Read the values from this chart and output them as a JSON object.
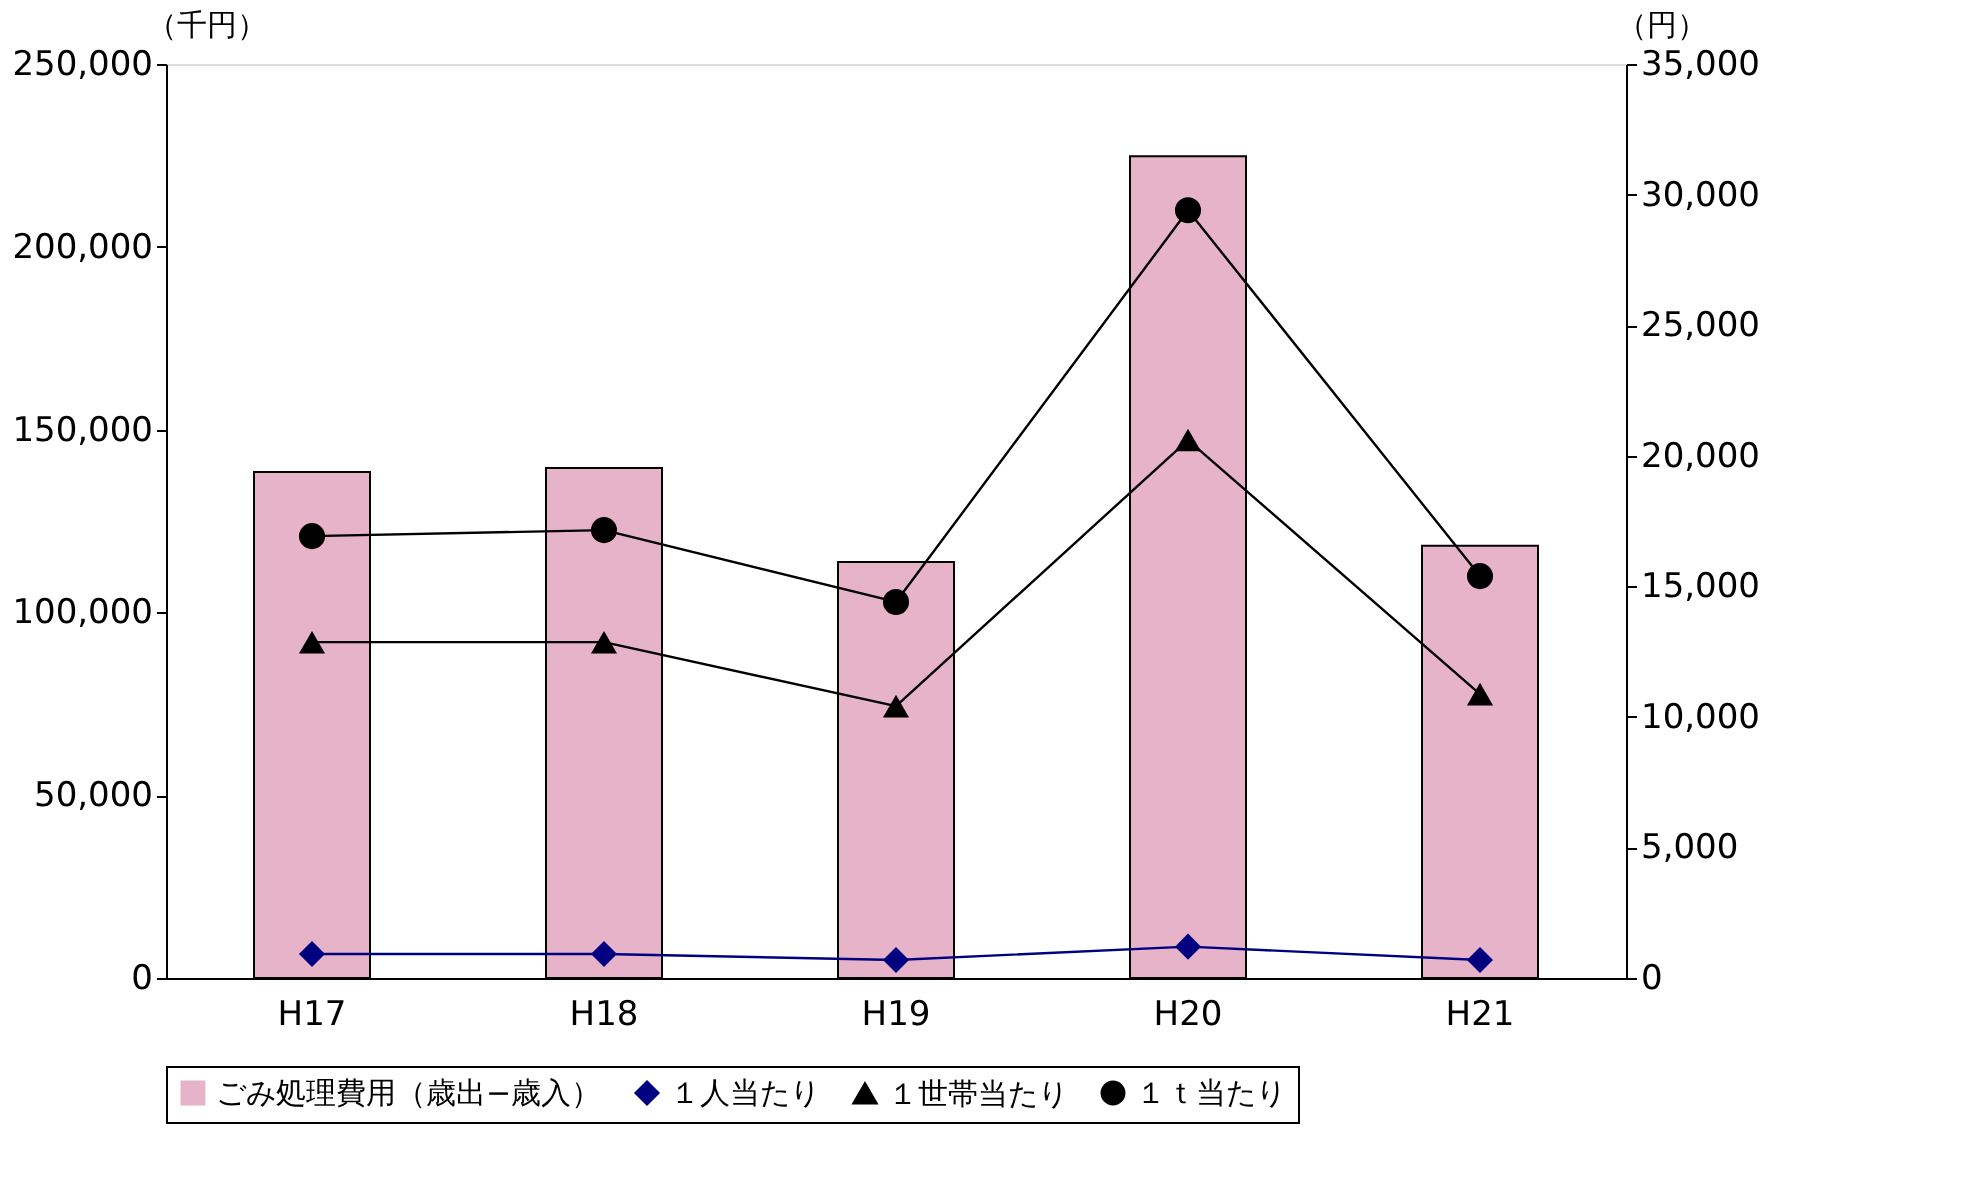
{
  "chart_data": {
    "type": "bar",
    "categories": [
      "H17",
      "H18",
      "H19",
      "H20",
      "H21"
    ],
    "ylabel": "（千円）",
    "y2label": "（円）",
    "ylim": [
      0,
      250000
    ],
    "yticks": [
      0,
      {
        "value": 50000,
        "label": "50,000"
      },
      {
        "value": 100000,
        "label": "100,000"
      },
      {
        "value": 150000,
        "label": "150,000"
      },
      {
        "value": 200000,
        "label": "200,000"
      },
      {
        "value": 250000,
        "label": "250,000"
      }
    ],
    "y2lim": [
      0,
      35000
    ],
    "y2ticks": [
      0,
      {
        "value": 5000,
        "label": "5,000"
      },
      {
        "value": 10000,
        "label": "10,000"
      },
      {
        "value": 15000,
        "label": "15,000"
      },
      {
        "value": 20000,
        "label": "20,000"
      },
      {
        "value": 25000,
        "label": "25,000"
      },
      {
        "value": 30000,
        "label": "30,000"
      },
      {
        "value": 35000,
        "label": "35,000"
      }
    ],
    "grid": false,
    "legend": "bottom",
    "series": [
      {
        "name": "ごみ処理費用（歳出−歳入）",
        "color": "#e6b3c8",
        "values": [
          138400,
          139500,
          113800,
          224800,
          118200
        ]
      },
      {
        "name": "１人当たり",
        "type": "line",
        "axis": "y2",
        "marker": "diamond",
        "color": "#000080",
        "values": [
          920,
          920,
          690,
          1200,
          690
        ]
      },
      {
        "name": "１世帯当たり",
        "type": "line",
        "axis": "y2",
        "marker": "triangle",
        "color": "#000000",
        "values": [
          12860,
          12860,
          10410,
          20600,
          10870
        ]
      },
      {
        "name": "１ｔ当たり",
        "type": "line",
        "axis": "y2",
        "marker": "circle",
        "color": "#000000",
        "values": [
          16920,
          17150,
          14400,
          29400,
          15390
        ]
      }
    ]
  }
}
